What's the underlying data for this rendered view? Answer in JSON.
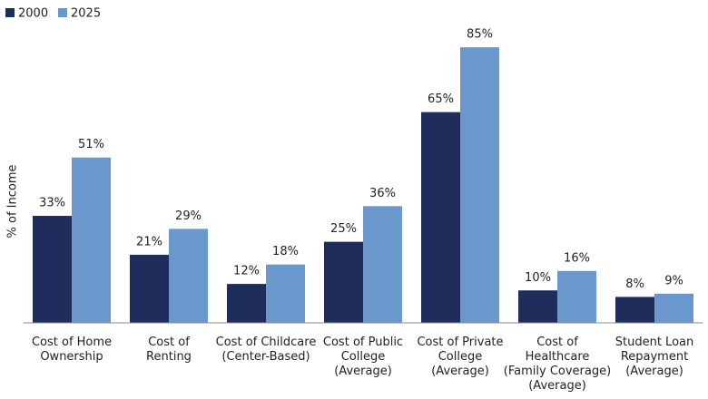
{
  "chart_data": {
    "type": "bar",
    "y_label": "% of Income",
    "categories": [
      "Cost of Home\nOwnership",
      "Cost of\nRenting",
      "Cost of Childcare\n(Center-Based)",
      "Cost of Public\nCollege\n(Average)",
      "Cost of Private\nCollege\n(Average)",
      "Cost of\nHealthcare\n(Family Coverage)\n(Average)",
      "Student Loan\nRepayment\n(Average)"
    ],
    "series": [
      {
        "name": "2000",
        "color": "#1f2d5c",
        "values": [
          33,
          21,
          12,
          25,
          65,
          10,
          8
        ],
        "value_labels": [
          "33%",
          "21%",
          "12%",
          "25%",
          "65%",
          "10%",
          "8%"
        ]
      },
      {
        "name": "2025",
        "color": "#6b98cc",
        "values": [
          51,
          29,
          18,
          36,
          85,
          16,
          9
        ],
        "value_labels": [
          "51%",
          "29%",
          "18%",
          "36%",
          "85%",
          "16%",
          "9%"
        ]
      }
    ],
    "ylim": [
      0,
      87
    ],
    "legend": "top-left"
  }
}
